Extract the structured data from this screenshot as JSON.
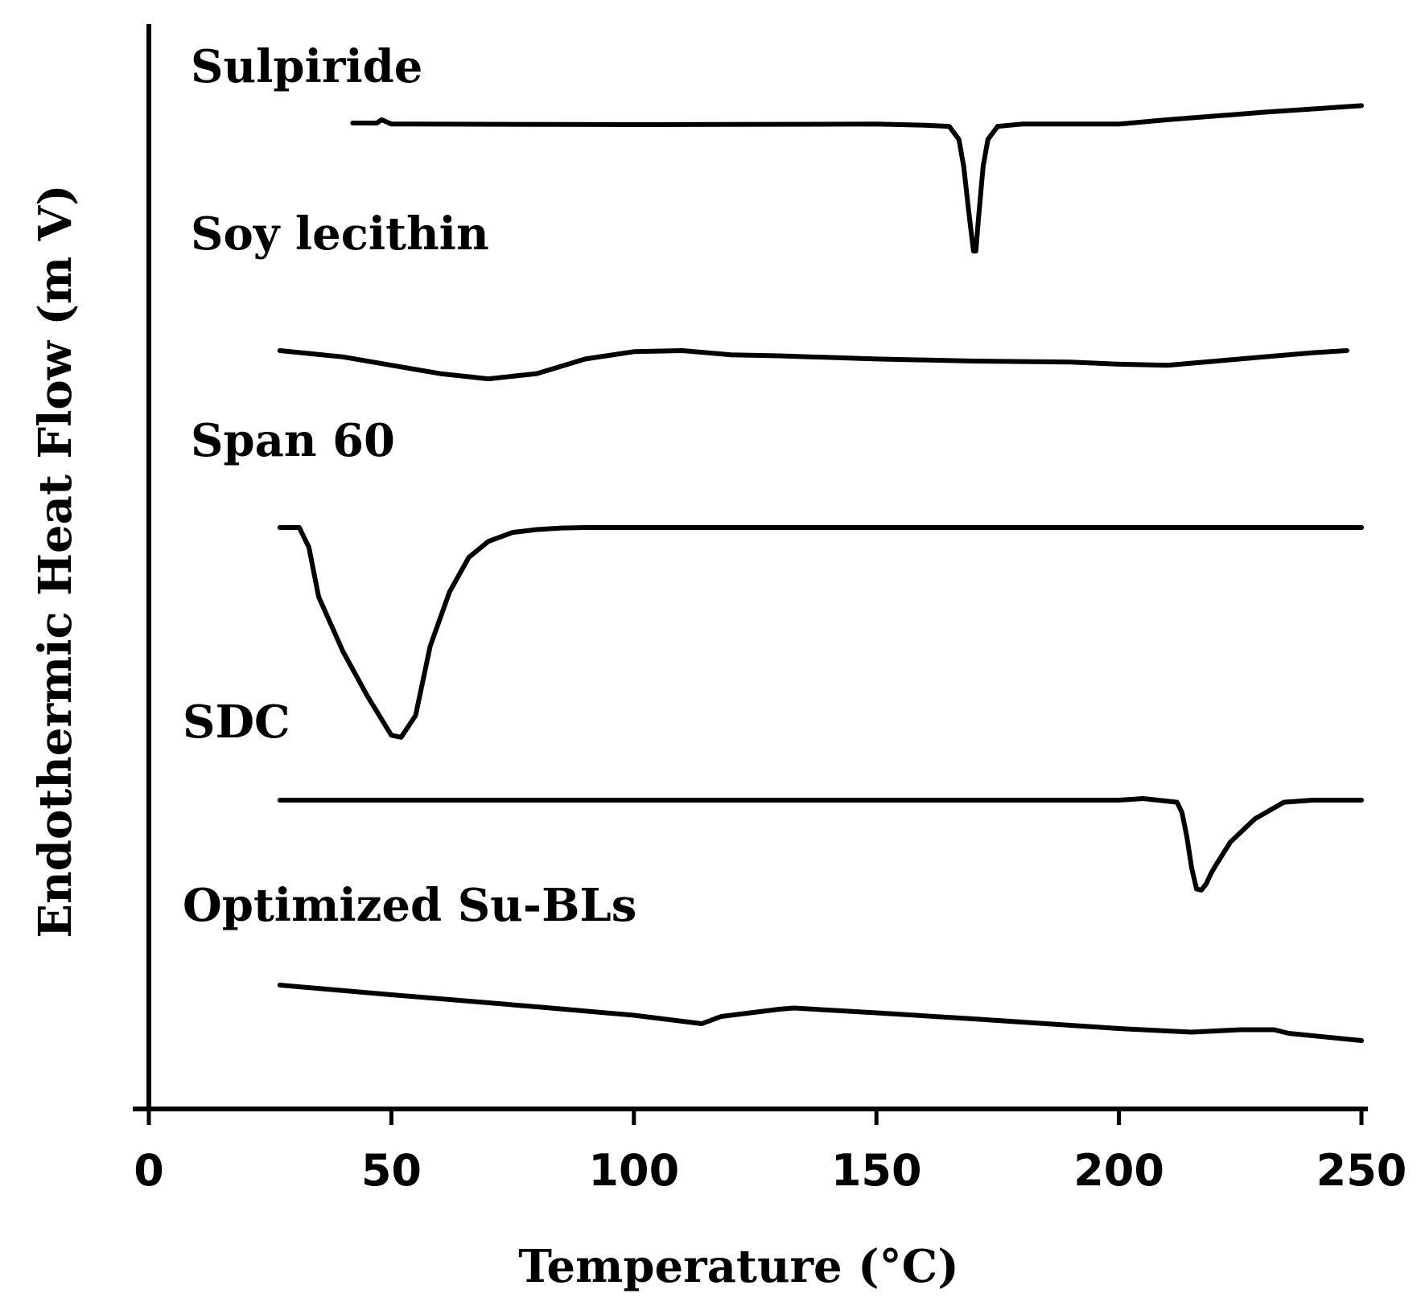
{
  "chart_data": {
    "type": "line",
    "title": "",
    "xlabel": "Temperature (°C)",
    "ylabel": "Endothermic Heat Flow (m V)",
    "xlim": [
      0,
      250
    ],
    "xticks": [
      0,
      50,
      100,
      150,
      200,
      250
    ],
    "grid": false,
    "legend": "none",
    "series": [
      {
        "name": "Sulpiride",
        "x": [
          42,
          47,
          48,
          50,
          55,
          100,
          150,
          160,
          165,
          167,
          168,
          169,
          170,
          170.5,
          171,
          172,
          173,
          175,
          180,
          200,
          210,
          230,
          250
        ],
        "y": [
          0.0,
          0.0,
          0.3,
          -0.1,
          -0.1,
          -0.15,
          -0.1,
          -0.2,
          -0.3,
          -1.5,
          -4.0,
          -8.0,
          -11.8,
          -11.8,
          -9.0,
          -4.0,
          -1.5,
          -0.3,
          -0.1,
          -0.1,
          0.3,
          1.0,
          1.6
        ]
      },
      {
        "name": "Soy lecithin",
        "x": [
          27,
          40,
          50,
          60,
          70,
          80,
          90,
          100,
          110,
          120,
          130,
          150,
          170,
          190,
          200,
          210,
          220,
          230,
          240,
          247
        ],
        "y": [
          0.0,
          -0.6,
          -1.4,
          -2.2,
          -2.7,
          -2.2,
          -0.8,
          -0.1,
          0.0,
          -0.4,
          -0.5,
          -0.8,
          -1.0,
          -1.1,
          -1.3,
          -1.4,
          -1.0,
          -0.6,
          -0.2,
          0.0
        ]
      },
      {
        "name": "Span 60",
        "x": [
          27,
          31,
          33,
          35,
          40,
          45,
          50,
          52,
          55,
          58,
          62,
          66,
          70,
          75,
          80,
          85,
          90,
          100,
          150,
          200,
          250
        ],
        "y": [
          0.0,
          0.0,
          -2.0,
          -7.0,
          -12.5,
          -17.0,
          -21.0,
          -21.2,
          -19.0,
          -12.0,
          -6.5,
          -3.0,
          -1.4,
          -0.5,
          -0.2,
          -0.05,
          0.0,
          0.0,
          0.0,
          0.0,
          0.0
        ]
      },
      {
        "name": "SDC",
        "x": [
          27,
          100,
          150,
          200,
          205,
          208,
          212,
          213,
          214,
          215,
          216,
          217,
          218,
          219,
          220,
          223,
          228,
          234,
          240,
          250
        ],
        "y": [
          0.0,
          0.0,
          0.0,
          0.0,
          0.15,
          0.0,
          -0.2,
          -1.2,
          -3.5,
          -6.5,
          -8.5,
          -8.6,
          -8.0,
          -7.0,
          -6.2,
          -4.0,
          -1.8,
          -0.2,
          0.0,
          0.0
        ]
      },
      {
        "name": "Optimized Su-BLs",
        "x": [
          27,
          50,
          80,
          100,
          114,
          118,
          122,
          130,
          133,
          150,
          170,
          200,
          215,
          220,
          225,
          232,
          235,
          250
        ],
        "y": [
          0.0,
          -0.8,
          -1.8,
          -2.5,
          -3.2,
          -2.6,
          -2.4,
          -2.0,
          -1.9,
          -2.3,
          -2.8,
          -3.6,
          -3.9,
          -3.8,
          -3.7,
          -3.7,
          -4.0,
          -4.6
        ]
      }
    ]
  }
}
